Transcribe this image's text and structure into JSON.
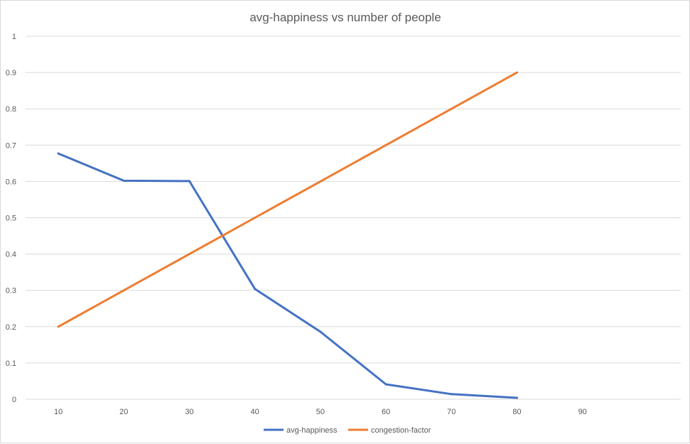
{
  "chart_data": {
    "type": "line",
    "title": "avg-happiness vs number of people",
    "categories": [
      "10",
      "20",
      "30",
      "40",
      "50",
      "60",
      "70",
      "80",
      "90"
    ],
    "yticks": [
      "0",
      "0.1",
      "0.2",
      "0.3",
      "0.4",
      "0.5",
      "0.6",
      "0.7",
      "0.8",
      "0.9",
      "1"
    ],
    "ylim": [
      0,
      1
    ],
    "grid": true,
    "legend_position": "bottom",
    "series": [
      {
        "name": "avg-happiness",
        "color": "#4472c4",
        "values": [
          0.677,
          0.602,
          0.601,
          0.304,
          0.186,
          0.041,
          0.014,
          0.004,
          null
        ]
      },
      {
        "name": "congestion-factor",
        "color": "#ed7d31",
        "values": [
          0.2,
          0.3,
          0.4,
          0.5,
          0.6,
          0.7,
          0.8,
          0.9,
          null
        ]
      }
    ]
  }
}
